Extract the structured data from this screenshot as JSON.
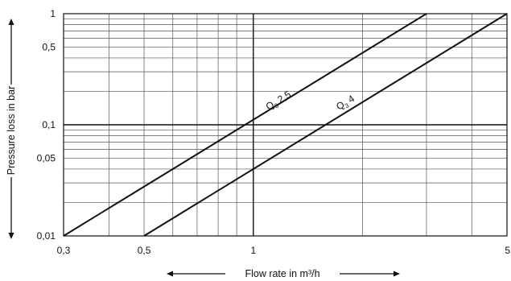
{
  "chart_data": {
    "type": "line",
    "x_scale": "log",
    "y_scale": "log",
    "xlim": [
      0.3,
      5
    ],
    "ylim": [
      0.01,
      1
    ],
    "xlabel": "Flow rate in m³/h",
    "ylabel": "Pressure loss in bar",
    "grid": true,
    "x_major_ticks": [
      1
    ],
    "y_major_ticks": [
      0.1
    ],
    "x_minor_gridlines": [
      0.4,
      0.5,
      0.6,
      0.7,
      0.8,
      0.9,
      2,
      3,
      4
    ],
    "y_minor_gridlines": [
      0.02,
      0.03,
      0.04,
      0.05,
      0.06,
      0.07,
      0.08,
      0.09,
      0.2,
      0.3,
      0.4,
      0.5,
      0.6,
      0.7,
      0.8,
      0.9
    ],
    "x_tick_labels": [
      {
        "value": 0.3,
        "label": "0,3"
      },
      {
        "value": 0.5,
        "label": "0,5"
      },
      {
        "value": 1,
        "label": "1"
      },
      {
        "value": 5,
        "label": "5"
      }
    ],
    "y_tick_labels": [
      {
        "value": 0.01,
        "label": "0,01"
      },
      {
        "value": 0.05,
        "label": "0,05"
      },
      {
        "value": 0.1,
        "label": "0,1"
      },
      {
        "value": 0.5,
        "label": "0,5"
      },
      {
        "value": 1,
        "label": "1"
      }
    ],
    "series": [
      {
        "label_main": "Q",
        "label_sub": "3",
        "label_rest": " 2,5",
        "points": [
          {
            "x": 0.3,
            "y": 0.01
          },
          {
            "x": 3.0,
            "y": 1.0
          }
        ],
        "label_at": {
          "x": 1.1,
          "y": 0.135
        }
      },
      {
        "label_main": "Q",
        "label_sub": "3",
        "label_rest": " 4",
        "points": [
          {
            "x": 0.5,
            "y": 0.01
          },
          {
            "x": 5.0,
            "y": 1.0
          }
        ],
        "label_at": {
          "x": 1.72,
          "y": 0.135
        }
      }
    ]
  }
}
